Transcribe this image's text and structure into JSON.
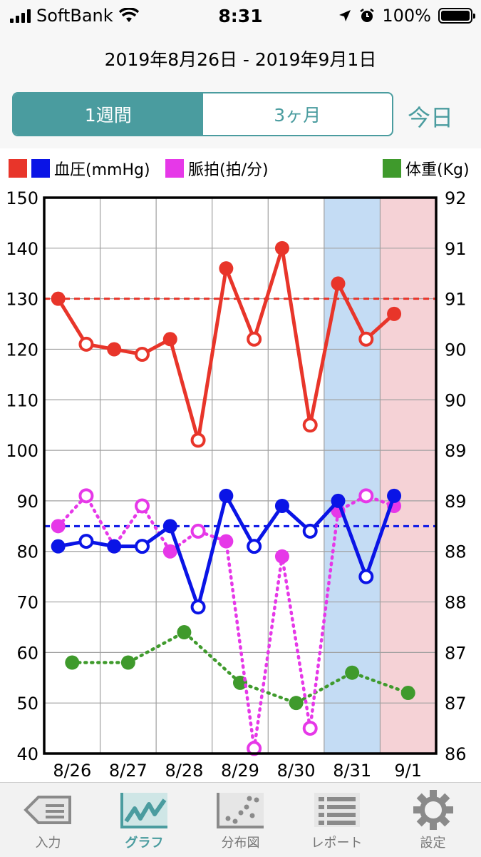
{
  "status": {
    "carrier": "SoftBank",
    "time": "8:31",
    "battery": "100%"
  },
  "date_range": "2019年8月26日 - 2019年9月1日",
  "segments": [
    {
      "label": "1週間",
      "active": true
    },
    {
      "label": "3ヶ月",
      "active": false
    }
  ],
  "today_label": "今日",
  "legend": {
    "bp": "血圧(mmHg)",
    "pulse": "脈拍(拍/分)",
    "weight": "体重(Kg)"
  },
  "colors": {
    "accent": "#4a9c9f",
    "systolic": "#e8352a",
    "diastolic": "#0a14e6",
    "pulse": "#e638e8",
    "weight": "#3f9a2c",
    "saturday_bg": "#c4dcf4",
    "sunday_bg": "#f5d2d6"
  },
  "chart_data": {
    "type": "line",
    "x_tick_labels": [
      "8/26",
      "8/27",
      "8/28",
      "8/29",
      "8/30",
      "8/31",
      "9/1"
    ],
    "y_left": {
      "range": [
        40,
        150
      ],
      "ticks": [
        40,
        50,
        60,
        70,
        80,
        90,
        100,
        110,
        120,
        130,
        140,
        150
      ]
    },
    "y_right": {
      "tick_labels": [
        "86",
        "87",
        "87",
        "88",
        "88",
        "89",
        "89",
        "90",
        "90",
        "91",
        "91",
        "92"
      ]
    },
    "grid": true,
    "reference_lines": {
      "systolic": 130,
      "diastolic": 85
    },
    "series": [
      {
        "key": "systolic",
        "style": "solid",
        "points": [
          {
            "x": 0.25,
            "y": 130,
            "filled": true
          },
          {
            "x": 0.75,
            "y": 121,
            "filled": false
          },
          {
            "x": 1.25,
            "y": 120,
            "filled": true
          },
          {
            "x": 1.75,
            "y": 119,
            "filled": false
          },
          {
            "x": 2.25,
            "y": 122,
            "filled": true
          },
          {
            "x": 2.75,
            "y": 102,
            "filled": false
          },
          {
            "x": 3.25,
            "y": 136,
            "filled": true
          },
          {
            "x": 3.75,
            "y": 122,
            "filled": false
          },
          {
            "x": 4.25,
            "y": 140,
            "filled": true
          },
          {
            "x": 4.75,
            "y": 105,
            "filled": false
          },
          {
            "x": 5.25,
            "y": 133,
            "filled": true
          },
          {
            "x": 5.75,
            "y": 122,
            "filled": false
          },
          {
            "x": 6.25,
            "y": 127,
            "filled": true
          }
        ]
      },
      {
        "key": "diastolic",
        "style": "solid",
        "points": [
          {
            "x": 0.25,
            "y": 81,
            "filled": true
          },
          {
            "x": 0.75,
            "y": 82,
            "filled": false
          },
          {
            "x": 1.25,
            "y": 81,
            "filled": true
          },
          {
            "x": 1.75,
            "y": 81,
            "filled": false
          },
          {
            "x": 2.25,
            "y": 85,
            "filled": true
          },
          {
            "x": 2.75,
            "y": 69,
            "filled": false
          },
          {
            "x": 3.25,
            "y": 91,
            "filled": true
          },
          {
            "x": 3.75,
            "y": 81,
            "filled": false
          },
          {
            "x": 4.25,
            "y": 89,
            "filled": true
          },
          {
            "x": 4.75,
            "y": 84,
            "filled": false
          },
          {
            "x": 5.25,
            "y": 90,
            "filled": true
          },
          {
            "x": 5.75,
            "y": 75,
            "filled": false
          },
          {
            "x": 6.25,
            "y": 91,
            "filled": true
          }
        ]
      },
      {
        "key": "pulse",
        "style": "dotted",
        "points": [
          {
            "x": 0.25,
            "y": 85,
            "filled": true
          },
          {
            "x": 0.75,
            "y": 91,
            "filled": false
          },
          {
            "x": 1.25,
            "y": 81,
            "filled": true
          },
          {
            "x": 1.75,
            "y": 89,
            "filled": false
          },
          {
            "x": 2.25,
            "y": 80,
            "filled": true
          },
          {
            "x": 2.75,
            "y": 84,
            "filled": false
          },
          {
            "x": 3.25,
            "y": 82,
            "filled": true
          },
          {
            "x": 3.75,
            "y": 41,
            "filled": false
          },
          {
            "x": 4.25,
            "y": 79,
            "filled": true
          },
          {
            "x": 4.75,
            "y": 45,
            "filled": false
          },
          {
            "x": 5.25,
            "y": 88,
            "filled": true
          },
          {
            "x": 5.75,
            "y": 91,
            "filled": false
          },
          {
            "x": 6.25,
            "y": 89,
            "filled": true
          }
        ]
      },
      {
        "key": "weight",
        "style": "dotted",
        "points": [
          {
            "x": 0.5,
            "y": 58,
            "filled": true
          },
          {
            "x": 1.5,
            "y": 58,
            "filled": true
          },
          {
            "x": 2.5,
            "y": 64,
            "filled": true
          },
          {
            "x": 3.5,
            "y": 54,
            "filled": true
          },
          {
            "x": 4.5,
            "y": 50,
            "filled": true
          },
          {
            "x": 5.5,
            "y": 56,
            "filled": true
          },
          {
            "x": 6.5,
            "y": 52,
            "filled": true
          }
        ]
      }
    ]
  },
  "tabs": [
    {
      "label": "入力",
      "icon": "input-icon",
      "active": false
    },
    {
      "label": "グラフ",
      "icon": "graph-icon",
      "active": true
    },
    {
      "label": "分布図",
      "icon": "scatter-icon",
      "active": false
    },
    {
      "label": "レポート",
      "icon": "report-icon",
      "active": false
    },
    {
      "label": "設定",
      "icon": "gear-icon",
      "active": false
    }
  ]
}
